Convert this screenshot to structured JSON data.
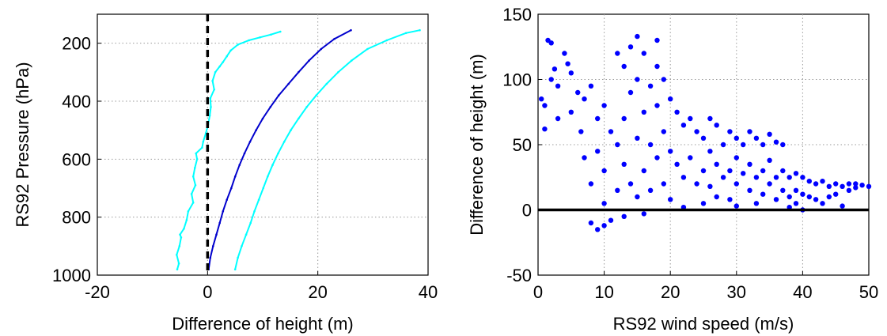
{
  "chart_data": [
    {
      "type": "line",
      "xlabel": "Difference of height (m)",
      "ylabel": "RS92 Pressure (hPa)",
      "xlim": [
        -20,
        40
      ],
      "ylim": [
        1000,
        100
      ],
      "y_reversed": true,
      "xticks": [
        "-20",
        "0",
        "20",
        "40"
      ],
      "yticks": [
        "200",
        "400",
        "600",
        "800",
        "1000"
      ],
      "grid": true,
      "reference_line": {
        "x": 0,
        "style": "dashed",
        "color": "#000000"
      },
      "series": [
        {
          "color": "#00ffff",
          "points": [
            [
              -5.5,
              980
            ],
            [
              -5.2,
              960
            ],
            [
              -5.6,
              930
            ],
            [
              -5.1,
              900
            ],
            [
              -4.8,
              870
            ],
            [
              -5.0,
              860
            ],
            [
              -4.3,
              840
            ],
            [
              -3.8,
              810
            ],
            [
              -3.5,
              780
            ],
            [
              -2.6,
              750
            ],
            [
              -2.9,
              720
            ],
            [
              -2.2,
              690
            ],
            [
              -2.6,
              660
            ],
            [
              -2.3,
              630
            ],
            [
              -1.9,
              600
            ],
            [
              -2.1,
              580
            ],
            [
              -1.0,
              560
            ],
            [
              -0.8,
              540
            ],
            [
              -0.3,
              510
            ],
            [
              0.1,
              480
            ],
            [
              0.4,
              450
            ],
            [
              0.6,
              420
            ],
            [
              0.5,
              390
            ],
            [
              1.2,
              360
            ],
            [
              0.9,
              330
            ],
            [
              1.4,
              300
            ],
            [
              2.2,
              280
            ],
            [
              2.8,
              265
            ],
            [
              3.5,
              245
            ],
            [
              4.2,
              225
            ],
            [
              5.5,
              205
            ],
            [
              7.5,
              190
            ],
            [
              9.5,
              180
            ],
            [
              11.5,
              170
            ],
            [
              13.2,
              160
            ]
          ]
        },
        {
          "color": "#0000cd",
          "points": [
            [
              0.2,
              980
            ],
            [
              0.5,
              940
            ],
            [
              1.0,
              900
            ],
            [
              1.6,
              860
            ],
            [
              2.2,
              820
            ],
            [
              2.8,
              780
            ],
            [
              3.5,
              740
            ],
            [
              4.3,
              700
            ],
            [
              5.0,
              660
            ],
            [
              5.8,
              620
            ],
            [
              6.7,
              580
            ],
            [
              7.7,
              540
            ],
            [
              8.8,
              500
            ],
            [
              10.0,
              460
            ],
            [
              11.4,
              420
            ],
            [
              12.9,
              380
            ],
            [
              14.7,
              340
            ],
            [
              16.5,
              300
            ],
            [
              18.4,
              260
            ],
            [
              20.6,
              220
            ],
            [
              23.0,
              185
            ],
            [
              26.0,
              155
            ]
          ]
        },
        {
          "color": "#00ffff",
          "points": [
            [
              5.0,
              980
            ],
            [
              5.5,
              940
            ],
            [
              6.2,
              900
            ],
            [
              7.0,
              860
            ],
            [
              7.8,
              820
            ],
            [
              8.5,
              780
            ],
            [
              9.3,
              740
            ],
            [
              10.1,
              700
            ],
            [
              10.9,
              660
            ],
            [
              11.8,
              620
            ],
            [
              12.8,
              580
            ],
            [
              13.9,
              540
            ],
            [
              15.1,
              500
            ],
            [
              16.5,
              460
            ],
            [
              18.0,
              420
            ],
            [
              19.7,
              380
            ],
            [
              21.6,
              340
            ],
            [
              23.7,
              300
            ],
            [
              26.1,
              260
            ],
            [
              29.0,
              220
            ],
            [
              32.5,
              190
            ],
            [
              36.0,
              165
            ],
            [
              38.5,
              155
            ]
          ]
        }
      ]
    },
    {
      "type": "scatter",
      "xlabel": "RS92 wind speed (m/s)",
      "ylabel": "Difference of height (m)",
      "xlim": [
        0,
        50
      ],
      "ylim": [
        -50,
        150
      ],
      "xticks": [
        "0",
        "10",
        "20",
        "30",
        "40",
        "50"
      ],
      "yticks": [
        "-50",
        "0",
        "50",
        "100",
        "150"
      ],
      "grid": true,
      "reference_line": {
        "y": 0,
        "style": "solid",
        "color": "#000000"
      },
      "series": [
        {
          "color": "#0000ff",
          "points": [
            [
              0.5,
              85
            ],
            [
              1,
              80
            ],
            [
              1,
              62
            ],
            [
              1.5,
              130
            ],
            [
              2,
              128
            ],
            [
              2,
              100
            ],
            [
              2.5,
              108
            ],
            [
              3,
              95
            ],
            [
              3,
              70
            ],
            [
              4,
              120
            ],
            [
              4.5,
              112
            ],
            [
              5,
              105
            ],
            [
              5,
              75
            ],
            [
              6,
              90
            ],
            [
              6.5,
              60
            ],
            [
              7,
              85
            ],
            [
              7,
              40
            ],
            [
              8,
              95
            ],
            [
              8,
              20
            ],
            [
              8,
              -10
            ],
            [
              9,
              70
            ],
            [
              9,
              45
            ],
            [
              9,
              -15
            ],
            [
              10,
              80
            ],
            [
              10,
              30
            ],
            [
              10,
              5
            ],
            [
              10,
              -12
            ],
            [
              11,
              60
            ],
            [
              11,
              -8
            ],
            [
              12,
              120
            ],
            [
              12,
              50
            ],
            [
              12,
              15
            ],
            [
              13,
              110
            ],
            [
              13,
              70
            ],
            [
              13,
              35
            ],
            [
              13,
              -5
            ],
            [
              14,
              125
            ],
            [
              14,
              90
            ],
            [
              14,
              20
            ],
            [
              15,
              133
            ],
            [
              15,
              100
            ],
            [
              15,
              55
            ],
            [
              15,
              10
            ],
            [
              16,
              120
            ],
            [
              16,
              75
            ],
            [
              16,
              30
            ],
            [
              16,
              -3
            ],
            [
              17,
              95
            ],
            [
              17,
              50
            ],
            [
              17,
              15
            ],
            [
              18,
              130
            ],
            [
              18,
              110
            ],
            [
              18,
              80
            ],
            [
              18,
              40
            ],
            [
              19,
              100
            ],
            [
              19,
              60
            ],
            [
              19,
              20
            ],
            [
              20,
              85
            ],
            [
              20,
              45
            ],
            [
              20,
              8
            ],
            [
              21,
              75
            ],
            [
              21,
              35
            ],
            [
              22,
              65
            ],
            [
              22,
              25
            ],
            [
              22,
              2
            ],
            [
              23,
              70
            ],
            [
              23,
              40
            ],
            [
              24,
              60
            ],
            [
              24,
              20
            ],
            [
              25,
              55
            ],
            [
              25,
              30
            ],
            [
              25,
              5
            ],
            [
              26,
              70
            ],
            [
              26,
              45
            ],
            [
              26,
              18
            ],
            [
              27,
              65
            ],
            [
              27,
              35
            ],
            [
              27,
              10
            ],
            [
              28,
              50
            ],
            [
              28,
              25
            ],
            [
              29,
              60
            ],
            [
              29,
              30
            ],
            [
              29,
              8
            ],
            [
              30,
              55
            ],
            [
              30,
              40
            ],
            [
              30,
              20
            ],
            [
              30,
              3
            ],
            [
              31,
              50
            ],
            [
              31,
              28
            ],
            [
              32,
              60
            ],
            [
              32,
              35
            ],
            [
              32,
              15
            ],
            [
              33,
              55
            ],
            [
              33,
              25
            ],
            [
              33,
              5
            ],
            [
              34,
              50
            ],
            [
              34,
              30
            ],
            [
              34,
              12
            ],
            [
              35,
              58
            ],
            [
              35,
              38
            ],
            [
              35,
              20
            ],
            [
              36,
              52
            ],
            [
              36,
              25
            ],
            [
              36,
              8
            ],
            [
              37,
              50
            ],
            [
              37,
              30
            ],
            [
              37,
              15
            ],
            [
              38,
              25
            ],
            [
              38,
              10
            ],
            [
              38,
              2
            ],
            [
              39,
              28
            ],
            [
              39,
              15
            ],
            [
              39,
              5
            ],
            [
              40,
              25
            ],
            [
              40,
              12
            ],
            [
              40,
              0
            ],
            [
              41,
              22
            ],
            [
              41,
              10
            ],
            [
              42,
              20
            ],
            [
              42,
              8
            ],
            [
              43,
              22
            ],
            [
              43,
              5
            ],
            [
              44,
              18
            ],
            [
              44,
              10
            ],
            [
              45,
              20
            ],
            [
              45,
              12
            ],
            [
              46,
              18
            ],
            [
              46,
              3
            ],
            [
              47,
              20
            ],
            [
              47,
              15
            ],
            [
              48,
              20
            ],
            [
              48,
              17
            ],
            [
              49,
              19
            ],
            [
              50,
              18
            ]
          ]
        }
      ]
    }
  ]
}
